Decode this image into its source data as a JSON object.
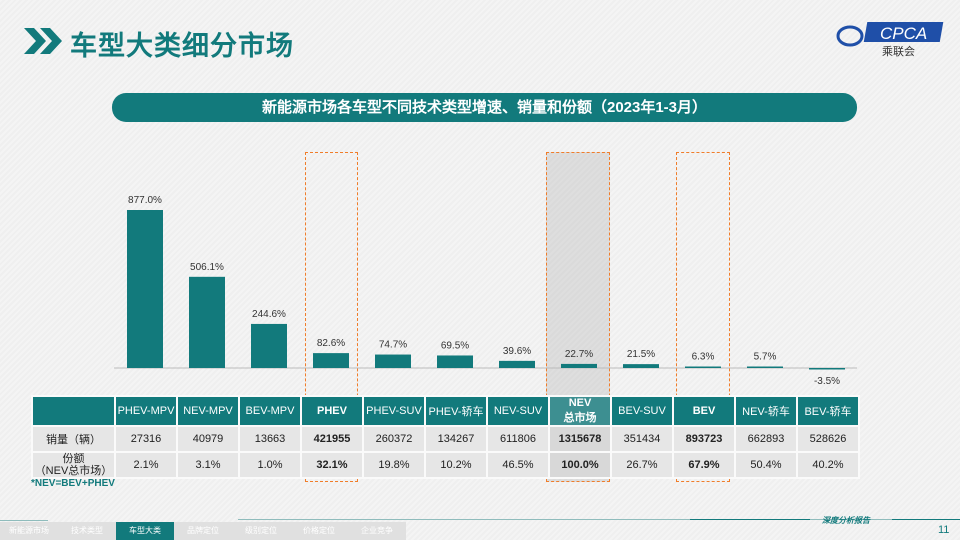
{
  "header": {
    "title": "车型大类细分市场",
    "logo_text": "CPCA",
    "logo_sub": "乘联会"
  },
  "subtitle": "新能源市场各车型不同技术类型增速、销量和份额（2023年1-3月）",
  "chart_data": {
    "type": "bar",
    "categories": [
      "PHEV-MPV",
      "NEV-MPV",
      "BEV-MPV",
      "PHEV",
      "PHEV-SUV",
      "PHEV-轿车",
      "NEV-SUV",
      "NEV\n总市场",
      "BEV-SUV",
      "BEV",
      "NEV-轿车",
      "BEV-轿车"
    ],
    "values": [
      877.0,
      506.1,
      244.6,
      82.6,
      74.7,
      69.5,
      39.6,
      22.7,
      21.5,
      6.3,
      5.7,
      -3.5
    ],
    "labels": [
      "877.0%",
      "506.1%",
      "244.6%",
      "82.6%",
      "74.7%",
      "69.5%",
      "39.6%",
      "22.7%",
      "21.5%",
      "6.3%",
      "5.7%",
      "-3.5%"
    ],
    "highlighted": [
      "PHEV",
      "NEV 总市场",
      "BEV"
    ],
    "color": "#127a7c"
  },
  "table": {
    "headers": [
      "",
      "PHEV-MPV",
      "NEV-MPV",
      "BEV-MPV",
      "PHEV",
      "PHEV-SUV",
      "PHEV-轿车",
      "NEV-SUV",
      "NEV 总市场",
      "BEV-SUV",
      "BEV",
      "NEV-轿车",
      "BEV-轿车"
    ],
    "rows": [
      {
        "label": "销量（辆）",
        "values": [
          "27316",
          "40979",
          "13663",
          "421955",
          "260372",
          "134267",
          "611806",
          "1315678",
          "351434",
          "893723",
          "662893",
          "528626"
        ]
      },
      {
        "label": "份额（NEV总市场）",
        "values": [
          "2.1%",
          "3.1%",
          "1.0%",
          "32.1%",
          "19.8%",
          "10.2%",
          "46.5%",
          "100.0%",
          "26.7%",
          "67.9%",
          "50.4%",
          "40.2%"
        ]
      }
    ]
  },
  "note": "*NEV=BEV+PHEV",
  "nav": [
    "新能源市场",
    "技术类型",
    "车型大类",
    "品牌定位",
    "级别定位",
    "价格定位",
    "企业竞争"
  ],
  "nav_active": 2,
  "footer": {
    "report": "深度分析报告",
    "page": "11"
  }
}
